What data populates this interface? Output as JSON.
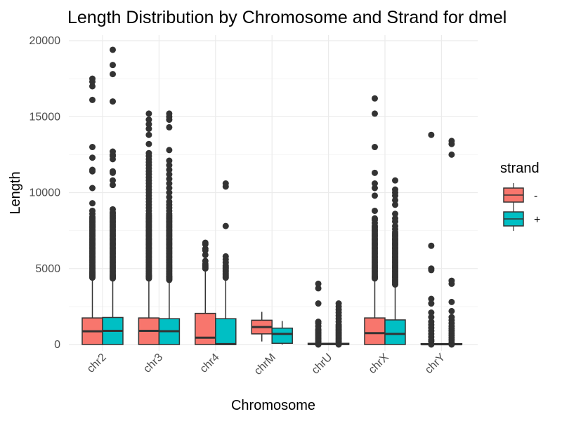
{
  "chart_data": {
    "type": "boxplot",
    "title": "Length Distribution by Chromosome and Strand for dmel",
    "xlabel": "Chromosome",
    "ylabel": "Length",
    "ylim": [
      0,
      20000
    ],
    "yticks": [
      0,
      5000,
      10000,
      15000,
      20000
    ],
    "categories": [
      "chr2",
      "chr3",
      "chr4",
      "chrM",
      "chrU",
      "chrX",
      "chrY"
    ],
    "grid": true,
    "legend": {
      "title": "strand",
      "position": "right",
      "entries": [
        {
          "label": "-",
          "color": "#F8766D"
        },
        {
          "label": "+",
          "color": "#00BFC4"
        }
      ]
    },
    "series": [
      {
        "name": "-",
        "color": "#F8766D",
        "boxes": [
          {
            "category": "chr2",
            "q1": 0,
            "median": 870,
            "q3": 1750,
            "whisker_low": 0,
            "whisker_high": 4350,
            "outliers": [
              4400,
              4450,
              4500,
              4550,
              4600,
              4650,
              4700,
              4750,
              4800,
              4900,
              5000,
              5100,
              5200,
              5300,
              5400,
              5500,
              5600,
              5700,
              5800,
              5900,
              6000,
              6100,
              6200,
              6300,
              6400,
              6500,
              6600,
              6700,
              6800,
              6900,
              7000,
              7100,
              7200,
              7300,
              7400,
              7500,
              7600,
              7700,
              7800,
              7900,
              8000,
              8100,
              8200,
              8300,
              8400,
              8600,
              8800,
              9300,
              10300,
              11400,
              11500,
              12300,
              13000,
              16100,
              17000,
              17300,
              17500
            ]
          },
          {
            "category": "chr3",
            "q1": 0,
            "median": 900,
            "q3": 1750,
            "whisker_low": 0,
            "whisker_high": 4300,
            "outliers": [
              4350,
              4400,
              4450,
              4500,
              4550,
              4600,
              4700,
              4800,
              4900,
              5000,
              5100,
              5200,
              5300,
              5400,
              5500,
              5600,
              5700,
              5800,
              5900,
              6000,
              6100,
              6200,
              6300,
              6400,
              6500,
              6600,
              6700,
              6800,
              6900,
              7000,
              7100,
              7200,
              7300,
              7400,
              7500,
              7600,
              7700,
              7800,
              7900,
              8000,
              8100,
              8200,
              8300,
              8400,
              8500,
              8600,
              8800,
              9000,
              9200,
              9400,
              9600,
              9800,
              10000,
              10200,
              10400,
              10600,
              10800,
              11000,
              11200,
              11400,
              11600,
              11800,
              12000,
              12200,
              12400,
              12600,
              13200,
              13800,
              14200,
              14500,
              14800,
              15200
            ]
          },
          {
            "category": "chr4",
            "q1": 0,
            "median": 450,
            "q3": 2050,
            "whisker_low": 0,
            "whisker_high": 4800,
            "outliers": [
              5000,
              5100,
              5200,
              5300,
              5500,
              5900,
              6200,
              6300,
              6600,
              6700
            ]
          },
          {
            "category": "chrM",
            "q1": 700,
            "median": 1150,
            "q3": 1600,
            "whisker_low": 200,
            "whisker_high": 2150,
            "outliers": []
          },
          {
            "category": "chrU",
            "q1": 0,
            "median": 30,
            "q3": 80,
            "whisker_low": 0,
            "whisker_high": 200,
            "outliers": [
              0,
              100,
              200,
              300,
              400,
              500,
              600,
              700,
              800,
              900,
              1000,
              1200,
              1400,
              1500,
              2700,
              3700,
              4000
            ]
          },
          {
            "category": "chrX",
            "q1": 0,
            "median": 750,
            "q3": 1750,
            "whisker_low": 0,
            "whisker_high": 4300,
            "outliers": [
              4350,
              4400,
              4450,
              4500,
              4600,
              4700,
              4800,
              4900,
              5000,
              5100,
              5200,
              5300,
              5400,
              5500,
              5600,
              5700,
              5800,
              5900,
              6000,
              6100,
              6200,
              6300,
              6400,
              6500,
              6600,
              6700,
              6800,
              6900,
              7000,
              7100,
              7200,
              7300,
              7400,
              7500,
              7600,
              7700,
              7800,
              8000,
              8200,
              8300,
              8800,
              9800,
              10300,
              10600,
              11300,
              13000,
              15200,
              16200
            ]
          },
          {
            "category": "chrY",
            "q1": 0,
            "median": 20,
            "q3": 60,
            "whisker_low": 0,
            "whisker_high": 150,
            "outliers": [
              0,
              200,
              300,
              500,
              700,
              900,
              1100,
              1300,
              1500,
              1800,
              2100,
              2700,
              3000,
              4900,
              5000,
              6500,
              13800
            ]
          }
        ]
      },
      {
        "name": "+",
        "color": "#00BFC4",
        "boxes": [
          {
            "category": "chr2",
            "q1": 0,
            "median": 900,
            "q3": 1780,
            "whisker_low": 0,
            "whisker_high": 4300,
            "outliers": [
              4350,
              4400,
              4450,
              4500,
              4550,
              4600,
              4700,
              4800,
              4900,
              5000,
              5100,
              5200,
              5300,
              5400,
              5500,
              5600,
              5700,
              5800,
              5900,
              6000,
              6100,
              6200,
              6300,
              6400,
              6500,
              6600,
              6700,
              6800,
              6900,
              7000,
              7100,
              7200,
              7300,
              7400,
              7500,
              7600,
              7700,
              7800,
              7900,
              8000,
              8100,
              8200,
              8300,
              8400,
              8500,
              8600,
              8700,
              8900,
              10500,
              10800,
              11300,
              11400,
              12200,
              12400,
              12500,
              12700,
              16000,
              17800,
              18400,
              19400
            ]
          },
          {
            "category": "chr3",
            "q1": 0,
            "median": 880,
            "q3": 1700,
            "whisker_low": 0,
            "whisker_high": 4200,
            "outliers": [
              4250,
              4300,
              4350,
              4400,
              4450,
              4500,
              4600,
              4700,
              4800,
              4900,
              5000,
              5100,
              5200,
              5300,
              5400,
              5500,
              5600,
              5700,
              5800,
              5900,
              6000,
              6100,
              6200,
              6300,
              6400,
              6500,
              6600,
              6700,
              6800,
              6900,
              7000,
              7100,
              7200,
              7300,
              7400,
              7500,
              7600,
              7700,
              7800,
              7900,
              8000,
              8100,
              8200,
              8300,
              8400,
              8500,
              8600,
              8800,
              9000,
              9200,
              9400,
              9700,
              10000,
              10300,
              10600,
              10900,
              11200,
              11500,
              11800,
              12100,
              12800,
              14300,
              14800,
              15000,
              15200
            ]
          },
          {
            "category": "chr4",
            "q1": 0,
            "median": 30,
            "q3": 1700,
            "whisker_low": 0,
            "whisker_high": 4200,
            "outliers": [
              4400,
              4500,
              4600,
              4700,
              4800,
              4900,
              5000,
              5100,
              5200,
              5400,
              5600,
              5800,
              7800,
              10400,
              10600
            ]
          },
          {
            "category": "chrM",
            "q1": 80,
            "median": 700,
            "q3": 1080,
            "whisker_low": 0,
            "whisker_high": 1550,
            "outliers": []
          },
          {
            "category": "chrU",
            "q1": 0,
            "median": 30,
            "q3": 80,
            "whisker_low": 0,
            "whisker_high": 200,
            "outliers": [
              0,
              100,
              200,
              300,
              400,
              500,
              600,
              700,
              800,
              900,
              1000,
              1100,
              1200,
              1300,
              1500,
              1700,
              1900,
              2100,
              2300,
              2500,
              2700
            ]
          },
          {
            "category": "chrX",
            "q1": 0,
            "median": 700,
            "q3": 1620,
            "whisker_low": 0,
            "whisker_high": 3900,
            "outliers": [
              3950,
              4000,
              4100,
              4200,
              4300,
              4400,
              4500,
              4600,
              4700,
              4800,
              4900,
              5000,
              5100,
              5200,
              5300,
              5400,
              5500,
              5600,
              5700,
              5800,
              5900,
              6000,
              6100,
              6200,
              6300,
              6400,
              6500,
              6600,
              6700,
              6800,
              6900,
              7000,
              7100,
              7200,
              7300,
              7400,
              7600,
              7800,
              8100,
              8300,
              8600,
              9200,
              9500,
              9800,
              10000,
              10200,
              10800
            ]
          },
          {
            "category": "chrY",
            "q1": 0,
            "median": 20,
            "q3": 60,
            "whisker_low": 0,
            "whisker_high": 150,
            "outliers": [
              0,
              150,
              300,
              450,
              600,
              750,
              900,
              1050,
              1200,
              1400,
              1600,
              1800,
              2200,
              2800,
              4000,
              4200,
              12500,
              13200,
              13400
            ]
          }
        ]
      }
    ]
  }
}
